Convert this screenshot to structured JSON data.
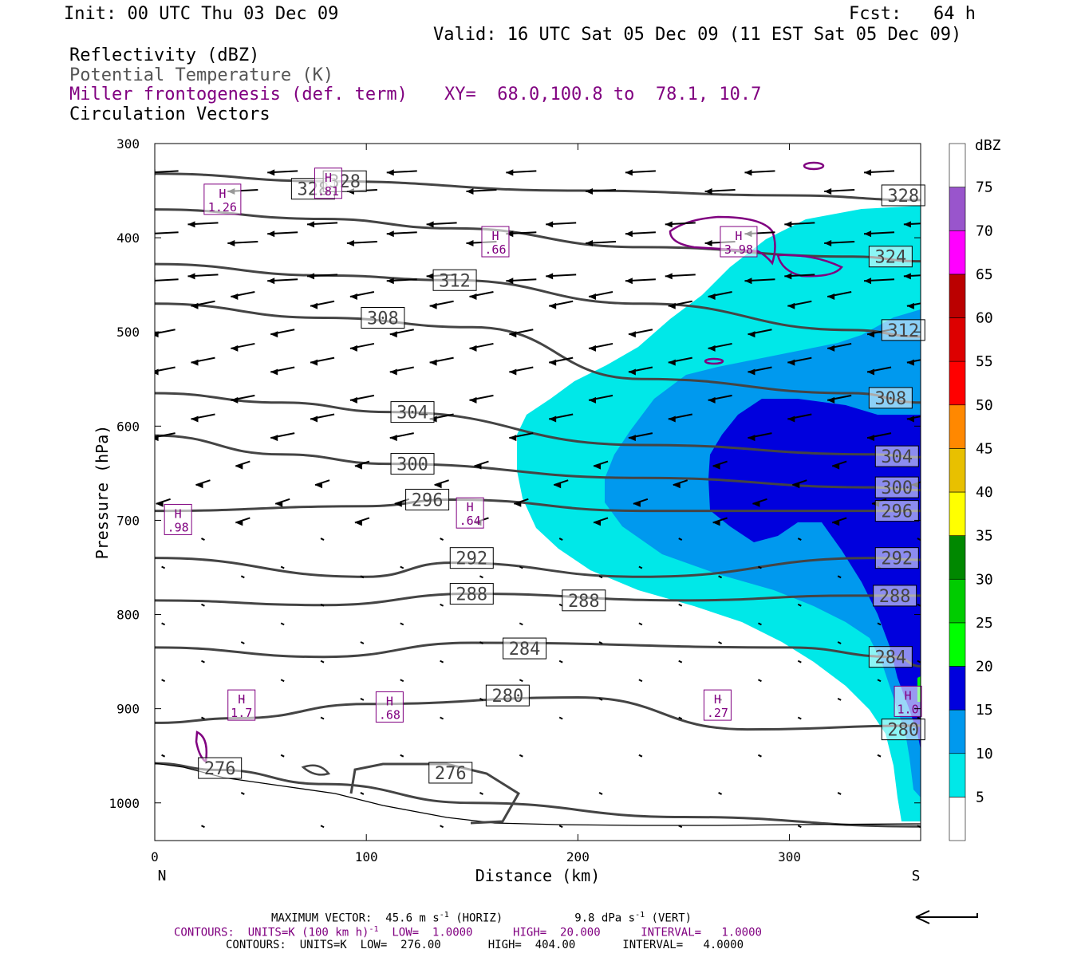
{
  "header": {
    "init": "Init: 00 UTC Thu 03 Dec 09",
    "fcst": "Fcst:   64 h",
    "valid": "Valid: 16 UTC Sat 05 Dec 09 (11 EST Sat 05 Dec 09)",
    "line1": "Reflectivity (dBZ)",
    "line2": "Potential Temperature (K)",
    "line3": "Miller frontogenesis (def. term)",
    "xy": "XY=  68.0,100.8 to  78.1, 10.7",
    "line4": "Circulation Vectors"
  },
  "footer": {
    "maxvec": "MAXIMUM VECTOR:  45.6 m s",
    "maxvec_horiz": " (HORIZ)",
    "maxvec_vert": "9.8 dPa s",
    "maxvec_vert2": " (VERT)",
    "sup": "-1",
    "contours1": "CONTOURS:  UNITS=K (100 km h)",
    "contours1_b": "  LOW=  1.0000      HIGH=  20.000      INTERVAL=   1.0000",
    "contours2": "CONTOURS:  UNITS=K  LOW=  276.00       HIGH=  404.00       INTERVAL=   4.0000"
  },
  "chart_data": {
    "type": "cross-section",
    "xlabel": "Distance (km)",
    "ylabel": "Pressure (hPa)",
    "xlim": [
      0,
      362
    ],
    "ylim": [
      1040,
      300
    ],
    "x_ticks": [
      0,
      100,
      200,
      300
    ],
    "y_ticks": [
      300,
      400,
      500,
      600,
      700,
      800,
      900,
      1000
    ],
    "left_end_label": "N",
    "right_end_label": "S",
    "colorbar": {
      "unit": "dBZ",
      "levels": [
        5,
        10,
        15,
        20,
        25,
        30,
        35,
        40,
        45,
        50,
        55,
        60,
        65,
        70,
        75
      ],
      "colors": [
        "#ffffff",
        "#00e8e8",
        "#0099ee",
        "#0000dd",
        "#00ff00",
        "#00cc00",
        "#008800",
        "#ffff00",
        "#e8c000",
        "#ff8800",
        "#ff0000",
        "#dd0000",
        "#bb0000",
        "#ff00ff",
        "#9955cc",
        "#ffffff"
      ]
    },
    "theta_contours": [
      {
        "label": "276",
        "points": [
          [
            0,
            958
          ],
          [
            30,
            965
          ],
          [
            80,
            980
          ],
          [
            150,
            1000
          ],
          [
            250,
            1015
          ],
          [
            362,
            1025
          ]
        ],
        "label_at": [
          [
            21,
            963
          ],
          [
            130,
            968
          ]
        ]
      },
      {
        "label": "280",
        "points": [
          [
            0,
            915
          ],
          [
            40,
            910
          ],
          [
            100,
            895
          ],
          [
            200,
            888
          ],
          [
            280,
            922
          ],
          [
            362,
            918
          ]
        ],
        "label_at": [
          [
            157,
            886
          ],
          [
            344,
            922
          ]
        ]
      },
      {
        "label": "284",
        "points": [
          [
            0,
            835
          ],
          [
            80,
            845
          ],
          [
            150,
            830
          ],
          [
            300,
            835
          ],
          [
            350,
            845
          ],
          [
            362,
            855
          ]
        ],
        "label_at": [
          [
            165,
            836
          ],
          [
            338,
            845
          ]
        ]
      },
      {
        "label": "288",
        "points": [
          [
            0,
            785
          ],
          [
            80,
            790
          ],
          [
            150,
            778
          ],
          [
            250,
            785
          ],
          [
            330,
            780
          ],
          [
            362,
            780
          ]
        ],
        "label_at": [
          [
            140,
            778
          ],
          [
            193,
            785
          ],
          [
            340,
            780
          ]
        ]
      },
      {
        "label": "292",
        "points": [
          [
            0,
            740
          ],
          [
            100,
            760
          ],
          [
            140,
            745
          ],
          [
            230,
            760
          ],
          [
            340,
            740
          ],
          [
            362,
            742
          ]
        ],
        "label_at": [
          [
            140,
            740
          ],
          [
            341,
            740
          ]
        ]
      },
      {
        "label": "296",
        "points": [
          [
            0,
            690
          ],
          [
            100,
            685
          ],
          [
            140,
            678
          ],
          [
            230,
            690
          ],
          [
            340,
            690
          ],
          [
            362,
            690
          ]
        ],
        "label_at": [
          [
            119,
            678
          ],
          [
            341,
            690
          ]
        ]
      },
      {
        "label": "300",
        "points": [
          [
            0,
            610
          ],
          [
            60,
            630
          ],
          [
            110,
            640
          ],
          [
            230,
            655
          ],
          [
            340,
            665
          ],
          [
            362,
            668
          ]
        ],
        "label_at": [
          [
            112,
            640
          ],
          [
            341,
            665
          ]
        ]
      },
      {
        "label": "304",
        "points": [
          [
            0,
            565
          ],
          [
            60,
            575
          ],
          [
            110,
            585
          ],
          [
            230,
            620
          ],
          [
            340,
            630
          ],
          [
            362,
            633
          ]
        ],
        "label_at": [
          [
            112,
            585
          ],
          [
            341,
            632
          ]
        ]
      },
      {
        "label": "308",
        "points": [
          [
            0,
            470
          ],
          [
            80,
            485
          ],
          [
            150,
            495
          ],
          [
            230,
            550
          ],
          [
            330,
            565
          ],
          [
            362,
            575
          ]
        ],
        "label_at": [
          [
            98,
            485
          ],
          [
            338,
            570
          ]
        ]
      },
      {
        "label": "312",
        "points": [
          [
            0,
            428
          ],
          [
            80,
            440
          ],
          [
            140,
            445
          ],
          [
            230,
            470
          ],
          [
            330,
            498
          ],
          [
            362,
            505
          ]
        ],
        "label_at": [
          [
            132,
            445
          ],
          [
            344,
            498
          ]
        ]
      },
      {
        "label": "324",
        "points": [
          [
            0,
            370
          ],
          [
            80,
            380
          ],
          [
            140,
            390
          ],
          [
            230,
            410
          ],
          [
            330,
            420
          ],
          [
            362,
            425
          ]
        ],
        "label_at": [
          [
            338,
            420
          ]
        ]
      },
      {
        "label": "328",
        "points": [
          [
            0,
            332
          ],
          [
            80,
            340
          ],
          [
            200,
            350
          ],
          [
            300,
            355
          ],
          [
            362,
            360
          ]
        ],
        "label_at": [
          [
            65,
            348
          ],
          [
            80,
            340
          ],
          [
            344,
            355
          ]
        ]
      }
    ],
    "frontogenesis_highs": [
      {
        "label": "H",
        "value": "1.26",
        "x": 32,
        "y": 360
      },
      {
        "label": "H",
        "value": ".81",
        "x": 82,
        "y": 343
      },
      {
        "label": "H",
        "value": ".66",
        "x": 161,
        "y": 405
      },
      {
        "label": "H",
        "value": "3.98",
        "x": 276,
        "y": 405
      },
      {
        "label": "H",
        "value": ".98",
        "x": 11,
        "y": 700
      },
      {
        "label": "H",
        "value": ".64",
        "x": 149,
        "y": 693
      },
      {
        "label": "H",
        "value": "1.7",
        "x": 41,
        "y": 897
      },
      {
        "label": "H",
        "value": ".68",
        "x": 111,
        "y": 899
      },
      {
        "label": "H",
        "value": ".27",
        "x": 266,
        "y": 897
      },
      {
        "label": "H",
        "value": "1.0",
        "x": 356,
        "y": 893
      }
    ],
    "vector_rows_hpa": [
      330,
      350,
      385,
      395,
      405,
      440,
      445,
      460,
      470,
      500,
      515,
      530,
      540,
      570,
      590,
      610,
      640,
      660,
      680,
      700,
      720,
      750,
      760,
      790,
      810,
      830,
      850,
      870,
      890,
      910,
      950,
      990,
      1025
    ]
  }
}
